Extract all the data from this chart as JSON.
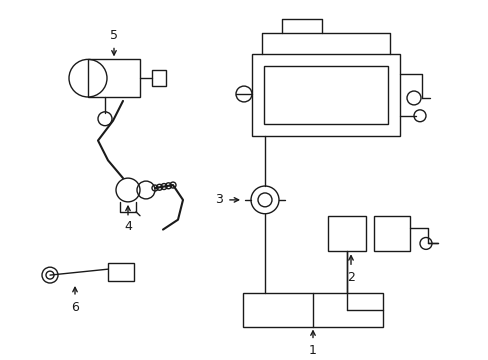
{
  "bg_color": "#ffffff",
  "line_color": "#1a1a1a",
  "fig_width": 4.89,
  "fig_height": 3.6,
  "dpi": 100,
  "lw": 1.0,
  "components": {
    "label_fontsize": 9
  }
}
